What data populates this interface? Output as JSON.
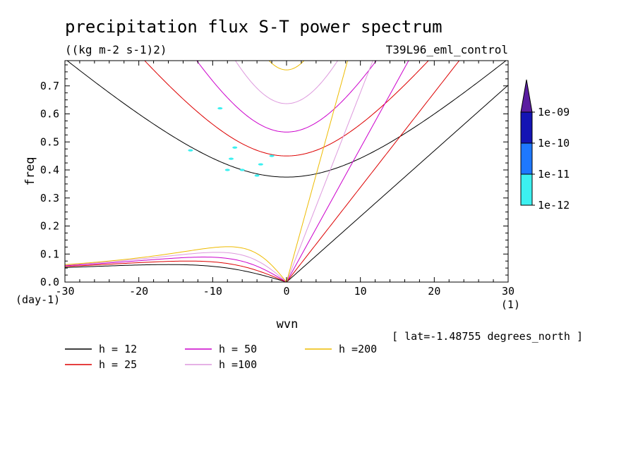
{
  "chart_data": {
    "type": "line",
    "title": "precipitation flux S-T power spectrum",
    "subtitle": "((kg m-2 s-1)2)",
    "run_label": "T39L96_eml_control",
    "xlabel": "wvn",
    "ylabel": "freq",
    "x_unit": "(1)",
    "y_unit": "(day-1)",
    "footnote": "[ lat=-1.48755 degrees_north ]",
    "xlim": [
      -30,
      30
    ],
    "ylim": [
      0,
      0.79
    ],
    "x_ticks": [
      -30,
      -20,
      -10,
      0,
      10,
      20,
      30
    ],
    "x_tick_labels": [
      "-30",
      "-20",
      "-10",
      "0",
      "10",
      "20",
      "30"
    ],
    "y_ticks": [
      0.0,
      0.1,
      0.2,
      0.3,
      0.4,
      0.5,
      0.6,
      0.7
    ],
    "y_tick_labels": [
      "0.0",
      "0.1",
      "0.2",
      "0.3",
      "0.4",
      "0.5",
      "0.6",
      "0.7"
    ],
    "grid": false,
    "legend_placement": "bottom-left",
    "colorbar": {
      "labels": [
        "1e-09",
        "1e-10",
        "1e-11",
        "1e-12"
      ],
      "colors": [
        "#5a1ea0",
        "#1414b4",
        "#1e78ff",
        "#3cf0f0"
      ]
    },
    "series": [
      {
        "name": "h = 12",
        "h": 12,
        "color": "#000000"
      },
      {
        "name": "h = 25",
        "h": 25,
        "color": "#dd0000"
      },
      {
        "name": "h = 50",
        "h": 50,
        "color": "#cc00cc"
      },
      {
        "name": "h =100",
        "h": 100,
        "color": "#dd99dd"
      },
      {
        "name": "h =200",
        "h": 200,
        "color": "#eebb00"
      }
    ],
    "spectral_patches": [
      {
        "x": -9.0,
        "y": 0.62
      },
      {
        "x": -13.0,
        "y": 0.47
      },
      {
        "x": -7.0,
        "y": 0.48
      },
      {
        "x": -7.5,
        "y": 0.44
      },
      {
        "x": -3.5,
        "y": 0.42
      },
      {
        "x": -2.0,
        "y": 0.45
      },
      {
        "x": -8.0,
        "y": 0.4
      },
      {
        "x": -6.0,
        "y": 0.4
      },
      {
        "x": -4.0,
        "y": 0.38
      }
    ]
  }
}
